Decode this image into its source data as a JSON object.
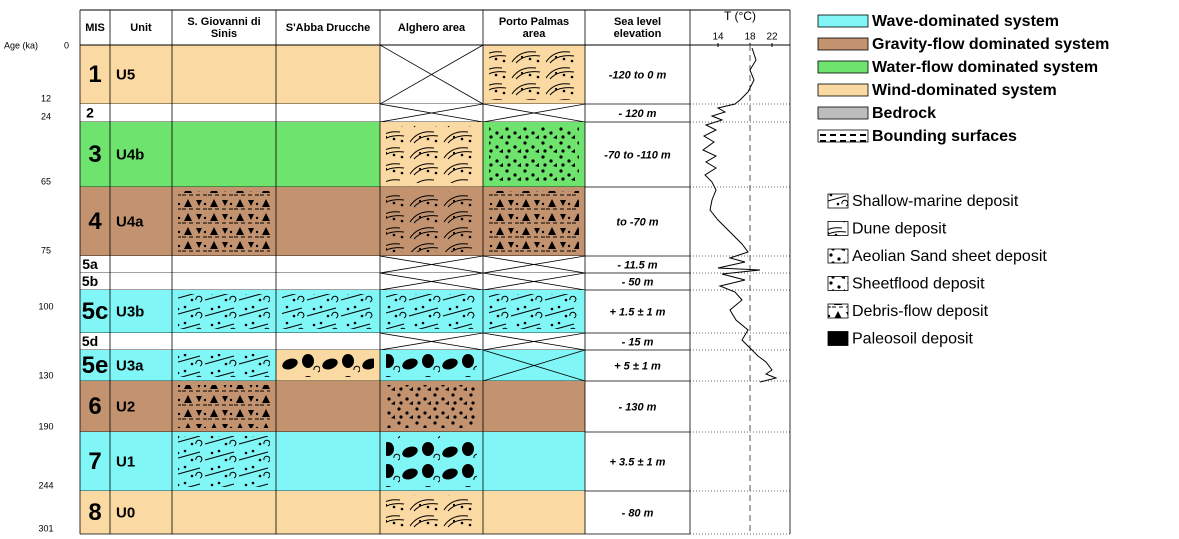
{
  "header": {
    "age_label": "Age (ka)",
    "columns": [
      "MIS",
      "Unit",
      "S. Giovanni di Sinis",
      "S'Abba Drucche",
      "Alghero area",
      "Porto Palmas area",
      "Sea level elevation",
      "T (°C)"
    ],
    "t_ticks": [
      "14",
      "18",
      "22"
    ]
  },
  "ages": [
    "0",
    "12",
    "24",
    "65",
    "75",
    "100",
    "130",
    "190",
    "244",
    "301"
  ],
  "rows": [
    {
      "mis": "1",
      "unit": "U5",
      "sea_level": "-120 to 0 m"
    },
    {
      "mis": "2",
      "unit": null,
      "sea_level": "- 120 m"
    },
    {
      "mis": "3",
      "unit": "U4b",
      "sea_level": "-70 to -110 m"
    },
    {
      "mis": "4",
      "unit": "U4a",
      "sea_level": "to -70 m"
    },
    {
      "mis": "5a",
      "unit": null,
      "sea_level": "- 11.5 m"
    },
    {
      "mis": "5b",
      "unit": null,
      "sea_level": "- 50 m"
    },
    {
      "mis": "5c",
      "unit": "U3b",
      "sea_level": "+ 1.5 ± 1 m"
    },
    {
      "mis": "5d",
      "unit": null,
      "sea_level": "- 15 m"
    },
    {
      "mis": "5e",
      "unit": "U3a",
      "sea_level": "+ 5 ± 1 m"
    },
    {
      "mis": "6",
      "unit": "U2",
      "sea_level": "- 130 m"
    },
    {
      "mis": "7",
      "unit": "U1",
      "sea_level": "+ 3.5 ± 1 m"
    },
    {
      "mis": "8",
      "unit": "U0",
      "sea_level": "- 80 m"
    }
  ],
  "legend": {
    "systems": [
      {
        "label": "Wave-dominated system",
        "color": "#80f6f6"
      },
      {
        "label": "Gravity-flow dominated system",
        "color": "#c39370"
      },
      {
        "label": "Water-flow dominated system",
        "color": "#6ee36e"
      },
      {
        "label": "Wind-dominated system",
        "color": "#fbd9a2"
      },
      {
        "label": "Bedrock",
        "color": "#bdbdbd"
      },
      {
        "label": "Bounding surfaces",
        "color": "#ffffff"
      }
    ],
    "deposits": [
      "Shallow-marine deposit",
      "Dune deposit",
      "Aeolian Sand sheet deposit",
      "Sheetflood deposit",
      "Debris-flow deposit",
      "Paleosoil deposit"
    ]
  }
}
